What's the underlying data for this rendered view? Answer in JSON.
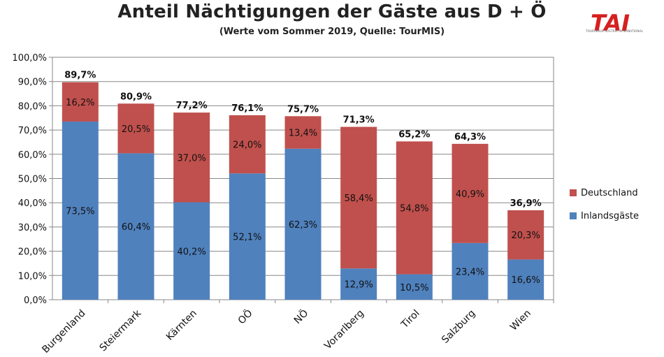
{
  "title": "Anteil Nächtigungen der Gäste aus D + Ö",
  "subtitle": "(Werte vom Sommer 2019, Quelle: TourMIS)",
  "logo": {
    "text": "TAI",
    "tagline": "TOURISMUS AUSTRIA INTERNATIONAL"
  },
  "colors": {
    "inland": "#4f81bd",
    "deutschland": "#c0504d",
    "grid": "#878787"
  },
  "chart_data": {
    "type": "bar",
    "stacked": true,
    "categories": [
      "Burgenland",
      "Steiermark",
      "Kärnten",
      "OÖ",
      "NÖ",
      "Vorarlberg",
      "Tirol",
      "Salzburg",
      "Wien"
    ],
    "series": [
      {
        "name": "Inlandsgäste",
        "values": [
          73.5,
          60.4,
          40.2,
          52.1,
          62.3,
          12.9,
          10.5,
          23.4,
          16.6
        ],
        "labels": [
          "73,5%",
          "60,4%",
          "40,2%",
          "52,1%",
          "62,3%",
          "12,9%",
          "10,5%",
          "23,4%",
          "16,6%"
        ]
      },
      {
        "name": "Deutschland",
        "values": [
          16.2,
          20.5,
          37.0,
          24.0,
          13.4,
          58.4,
          54.8,
          40.9,
          20.3
        ],
        "labels": [
          "16,2%",
          "20,5%",
          "37,0%",
          "24,0%",
          "13,4%",
          "58,4%",
          "54,8%",
          "40,9%",
          "20,3%"
        ]
      }
    ],
    "totals": [
      89.7,
      80.9,
      77.2,
      76.1,
      75.7,
      71.3,
      65.2,
      64.3,
      36.9
    ],
    "total_labels": [
      "89,7%",
      "80,9%",
      "77,2%",
      "76,1%",
      "75,7%",
      "71,3%",
      "65,2%",
      "64,3%",
      "36,9%"
    ],
    "y_ticks": [
      "0,0%",
      "10,0%",
      "20,0%",
      "30,0%",
      "40,0%",
      "50,0%",
      "60,0%",
      "70,0%",
      "80,0%",
      "90,0%",
      "100,0%"
    ],
    "ylim": [
      0,
      100
    ],
    "grid": true,
    "legend_position": "right",
    "legend": [
      "Deutschland",
      "Inlandsgäste"
    ]
  }
}
